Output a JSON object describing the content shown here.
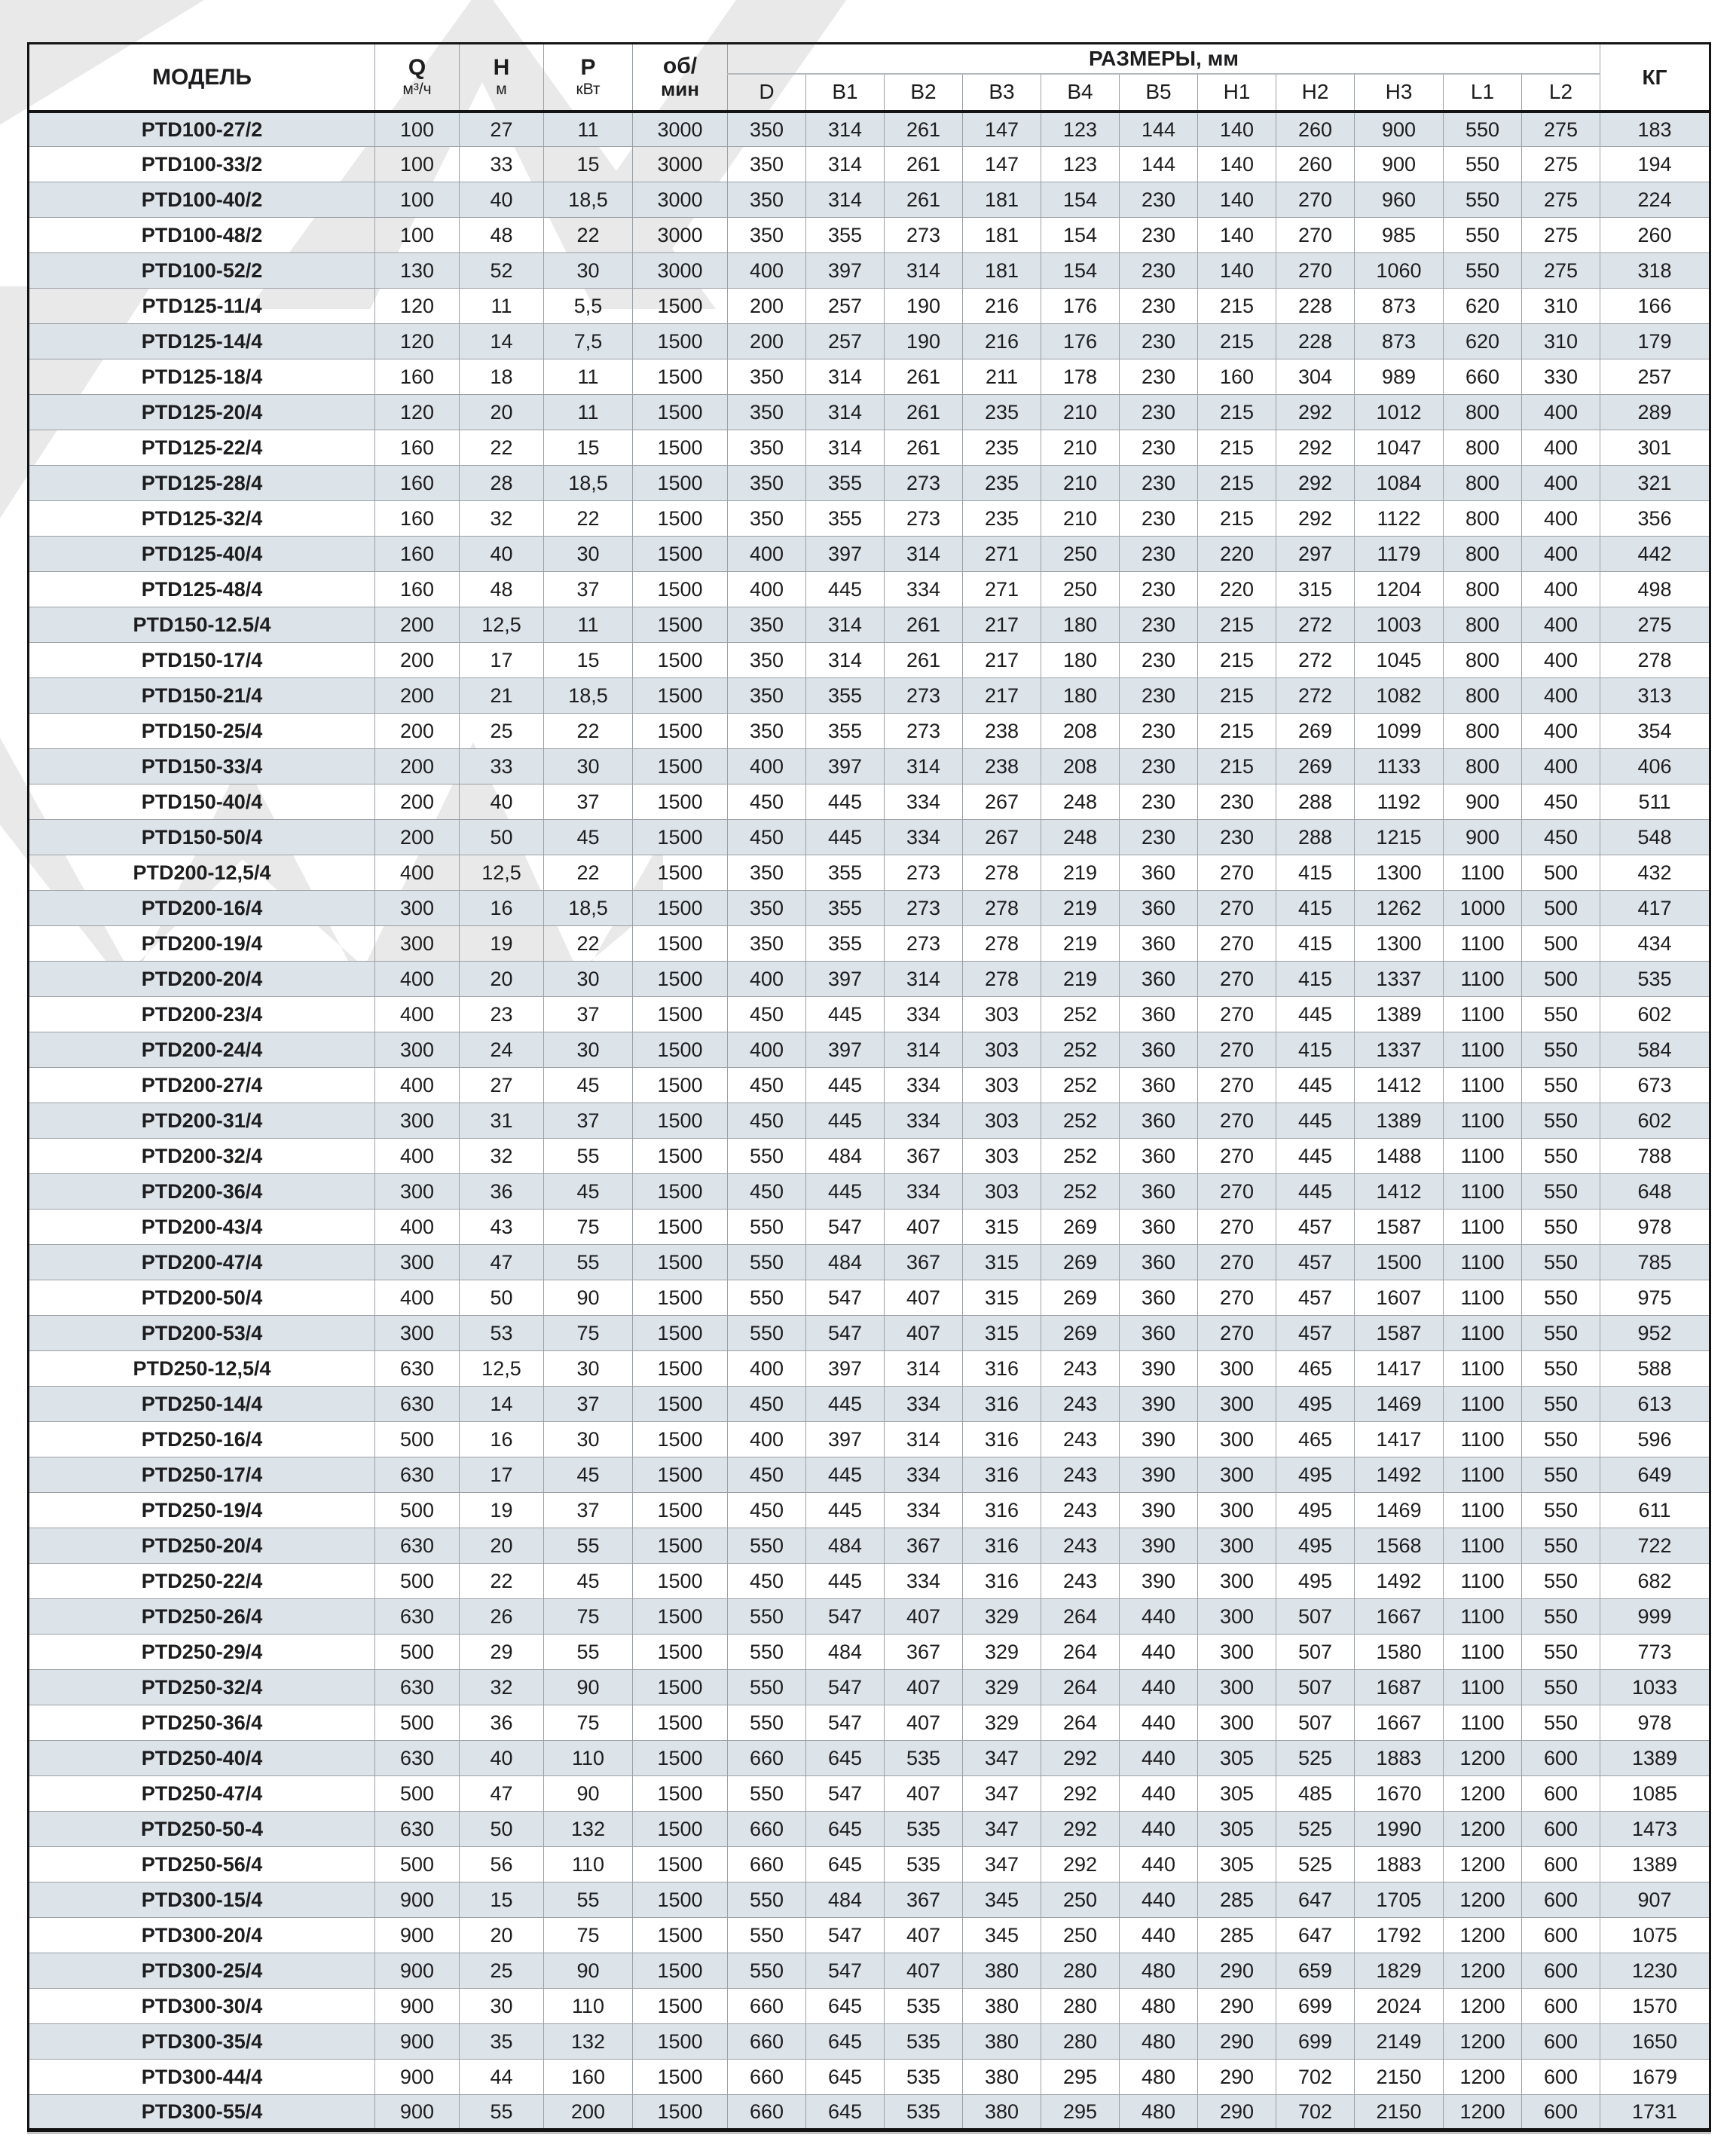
{
  "colors": {
    "row_shade": "#dce3e9",
    "grid_line": "#9aa0a6",
    "frame": "#141414",
    "text": "#1d1d1f",
    "watermark": "#e9e9e9"
  },
  "header": {
    "model": "МОДЕЛЬ",
    "q_label": "Q",
    "q_unit": "м³/ч",
    "h_label": "Н",
    "h_unit": "м",
    "p_label": "Р",
    "p_unit": "кВт",
    "rpm_line1": "об/",
    "rpm_line2": "мин",
    "sizes_label": "РАЗМЕРЫ, мм",
    "size_cols": [
      "D",
      "B1",
      "B2",
      "B3",
      "B4",
      "B5",
      "H1",
      "H2",
      "H3",
      "L1",
      "L2"
    ],
    "kg": "КГ"
  },
  "rows": [
    [
      "PTD100-27/2",
      "100",
      "27",
      "11",
      "3000",
      "350",
      "314",
      "261",
      "147",
      "123",
      "144",
      "140",
      "260",
      "900",
      "550",
      "275",
      "183"
    ],
    [
      "PTD100-33/2",
      "100",
      "33",
      "15",
      "3000",
      "350",
      "314",
      "261",
      "147",
      "123",
      "144",
      "140",
      "260",
      "900",
      "550",
      "275",
      "194"
    ],
    [
      "PTD100-40/2",
      "100",
      "40",
      "18,5",
      "3000",
      "350",
      "314",
      "261",
      "181",
      "154",
      "230",
      "140",
      "270",
      "960",
      "550",
      "275",
      "224"
    ],
    [
      "PTD100-48/2",
      "100",
      "48",
      "22",
      "3000",
      "350",
      "355",
      "273",
      "181",
      "154",
      "230",
      "140",
      "270",
      "985",
      "550",
      "275",
      "260"
    ],
    [
      "PTD100-52/2",
      "130",
      "52",
      "30",
      "3000",
      "400",
      "397",
      "314",
      "181",
      "154",
      "230",
      "140",
      "270",
      "1060",
      "550",
      "275",
      "318"
    ],
    [
      "PTD125-11/4",
      "120",
      "11",
      "5,5",
      "1500",
      "200",
      "257",
      "190",
      "216",
      "176",
      "230",
      "215",
      "228",
      "873",
      "620",
      "310",
      "166"
    ],
    [
      "PTD125-14/4",
      "120",
      "14",
      "7,5",
      "1500",
      "200",
      "257",
      "190",
      "216",
      "176",
      "230",
      "215",
      "228",
      "873",
      "620",
      "310",
      "179"
    ],
    [
      "PTD125-18/4",
      "160",
      "18",
      "11",
      "1500",
      "350",
      "314",
      "261",
      "211",
      "178",
      "230",
      "160",
      "304",
      "989",
      "660",
      "330",
      "257"
    ],
    [
      "PTD125-20/4",
      "120",
      "20",
      "11",
      "1500",
      "350",
      "314",
      "261",
      "235",
      "210",
      "230",
      "215",
      "292",
      "1012",
      "800",
      "400",
      "289"
    ],
    [
      "PTD125-22/4",
      "160",
      "22",
      "15",
      "1500",
      "350",
      "314",
      "261",
      "235",
      "210",
      "230",
      "215",
      "292",
      "1047",
      "800",
      "400",
      "301"
    ],
    [
      "PTD125-28/4",
      "160",
      "28",
      "18,5",
      "1500",
      "350",
      "355",
      "273",
      "235",
      "210",
      "230",
      "215",
      "292",
      "1084",
      "800",
      "400",
      "321"
    ],
    [
      "PTD125-32/4",
      "160",
      "32",
      "22",
      "1500",
      "350",
      "355",
      "273",
      "235",
      "210",
      "230",
      "215",
      "292",
      "1122",
      "800",
      "400",
      "356"
    ],
    [
      "PTD125-40/4",
      "160",
      "40",
      "30",
      "1500",
      "400",
      "397",
      "314",
      "271",
      "250",
      "230",
      "220",
      "297",
      "1179",
      "800",
      "400",
      "442"
    ],
    [
      "PTD125-48/4",
      "160",
      "48",
      "37",
      "1500",
      "400",
      "445",
      "334",
      "271",
      "250",
      "230",
      "220",
      "315",
      "1204",
      "800",
      "400",
      "498"
    ],
    [
      "PTD150-12.5/4",
      "200",
      "12,5",
      "11",
      "1500",
      "350",
      "314",
      "261",
      "217",
      "180",
      "230",
      "215",
      "272",
      "1003",
      "800",
      "400",
      "275"
    ],
    [
      "PTD150-17/4",
      "200",
      "17",
      "15",
      "1500",
      "350",
      "314",
      "261",
      "217",
      "180",
      "230",
      "215",
      "272",
      "1045",
      "800",
      "400",
      "278"
    ],
    [
      "PTD150-21/4",
      "200",
      "21",
      "18,5",
      "1500",
      "350",
      "355",
      "273",
      "217",
      "180",
      "230",
      "215",
      "272",
      "1082",
      "800",
      "400",
      "313"
    ],
    [
      "PTD150-25/4",
      "200",
      "25",
      "22",
      "1500",
      "350",
      "355",
      "273",
      "238",
      "208",
      "230",
      "215",
      "269",
      "1099",
      "800",
      "400",
      "354"
    ],
    [
      "PTD150-33/4",
      "200",
      "33",
      "30",
      "1500",
      "400",
      "397",
      "314",
      "238",
      "208",
      "230",
      "215",
      "269",
      "1133",
      "800",
      "400",
      "406"
    ],
    [
      "PTD150-40/4",
      "200",
      "40",
      "37",
      "1500",
      "450",
      "445",
      "334",
      "267",
      "248",
      "230",
      "230",
      "288",
      "1192",
      "900",
      "450",
      "511"
    ],
    [
      "PTD150-50/4",
      "200",
      "50",
      "45",
      "1500",
      "450",
      "445",
      "334",
      "267",
      "248",
      "230",
      "230",
      "288",
      "1215",
      "900",
      "450",
      "548"
    ],
    [
      "PTD200-12,5/4",
      "400",
      "12,5",
      "22",
      "1500",
      "350",
      "355",
      "273",
      "278",
      "219",
      "360",
      "270",
      "415",
      "1300",
      "1100",
      "500",
      "432"
    ],
    [
      "PTD200-16/4",
      "300",
      "16",
      "18,5",
      "1500",
      "350",
      "355",
      "273",
      "278",
      "219",
      "360",
      "270",
      "415",
      "1262",
      "1000",
      "500",
      "417"
    ],
    [
      "PTD200-19/4",
      "300",
      "19",
      "22",
      "1500",
      "350",
      "355",
      "273",
      "278",
      "219",
      "360",
      "270",
      "415",
      "1300",
      "1100",
      "500",
      "434"
    ],
    [
      "PTD200-20/4",
      "400",
      "20",
      "30",
      "1500",
      "400",
      "397",
      "314",
      "278",
      "219",
      "360",
      "270",
      "415",
      "1337",
      "1100",
      "500",
      "535"
    ],
    [
      "PTD200-23/4",
      "400",
      "23",
      "37",
      "1500",
      "450",
      "445",
      "334",
      "303",
      "252",
      "360",
      "270",
      "445",
      "1389",
      "1100",
      "550",
      "602"
    ],
    [
      "PTD200-24/4",
      "300",
      "24",
      "30",
      "1500",
      "400",
      "397",
      "314",
      "303",
      "252",
      "360",
      "270",
      "415",
      "1337",
      "1100",
      "550",
      "584"
    ],
    [
      "PTD200-27/4",
      "400",
      "27",
      "45",
      "1500",
      "450",
      "445",
      "334",
      "303",
      "252",
      "360",
      "270",
      "445",
      "1412",
      "1100",
      "550",
      "673"
    ],
    [
      "PTD200-31/4",
      "300",
      "31",
      "37",
      "1500",
      "450",
      "445",
      "334",
      "303",
      "252",
      "360",
      "270",
      "445",
      "1389",
      "1100",
      "550",
      "602"
    ],
    [
      "PTD200-32/4",
      "400",
      "32",
      "55",
      "1500",
      "550",
      "484",
      "367",
      "303",
      "252",
      "360",
      "270",
      "445",
      "1488",
      "1100",
      "550",
      "788"
    ],
    [
      "PTD200-36/4",
      "300",
      "36",
      "45",
      "1500",
      "450",
      "445",
      "334",
      "303",
      "252",
      "360",
      "270",
      "445",
      "1412",
      "1100",
      "550",
      "648"
    ],
    [
      "PTD200-43/4",
      "400",
      "43",
      "75",
      "1500",
      "550",
      "547",
      "407",
      "315",
      "269",
      "360",
      "270",
      "457",
      "1587",
      "1100",
      "550",
      "978"
    ],
    [
      "PTD200-47/4",
      "300",
      "47",
      "55",
      "1500",
      "550",
      "484",
      "367",
      "315",
      "269",
      "360",
      "270",
      "457",
      "1500",
      "1100",
      "550",
      "785"
    ],
    [
      "PTD200-50/4",
      "400",
      "50",
      "90",
      "1500",
      "550",
      "547",
      "407",
      "315",
      "269",
      "360",
      "270",
      "457",
      "1607",
      "1100",
      "550",
      "975"
    ],
    [
      "PTD200-53/4",
      "300",
      "53",
      "75",
      "1500",
      "550",
      "547",
      "407",
      "315",
      "269",
      "360",
      "270",
      "457",
      "1587",
      "1100",
      "550",
      "952"
    ],
    [
      "PTD250-12,5/4",
      "630",
      "12,5",
      "30",
      "1500",
      "400",
      "397",
      "314",
      "316",
      "243",
      "390",
      "300",
      "465",
      "1417",
      "1100",
      "550",
      "588"
    ],
    [
      "PTD250-14/4",
      "630",
      "14",
      "37",
      "1500",
      "450",
      "445",
      "334",
      "316",
      "243",
      "390",
      "300",
      "495",
      "1469",
      "1100",
      "550",
      "613"
    ],
    [
      "PTD250-16/4",
      "500",
      "16",
      "30",
      "1500",
      "400",
      "397",
      "314",
      "316",
      "243",
      "390",
      "300",
      "465",
      "1417",
      "1100",
      "550",
      "596"
    ],
    [
      "PTD250-17/4",
      "630",
      "17",
      "45",
      "1500",
      "450",
      "445",
      "334",
      "316",
      "243",
      "390",
      "300",
      "495",
      "1492",
      "1100",
      "550",
      "649"
    ],
    [
      "PTD250-19/4",
      "500",
      "19",
      "37",
      "1500",
      "450",
      "445",
      "334",
      "316",
      "243",
      "390",
      "300",
      "495",
      "1469",
      "1100",
      "550",
      "611"
    ],
    [
      "PTD250-20/4",
      "630",
      "20",
      "55",
      "1500",
      "550",
      "484",
      "367",
      "316",
      "243",
      "390",
      "300",
      "495",
      "1568",
      "1100",
      "550",
      "722"
    ],
    [
      "PTD250-22/4",
      "500",
      "22",
      "45",
      "1500",
      "450",
      "445",
      "334",
      "316",
      "243",
      "390",
      "300",
      "495",
      "1492",
      "1100",
      "550",
      "682"
    ],
    [
      "PTD250-26/4",
      "630",
      "26",
      "75",
      "1500",
      "550",
      "547",
      "407",
      "329",
      "264",
      "440",
      "300",
      "507",
      "1667",
      "1100",
      "550",
      "999"
    ],
    [
      "PTD250-29/4",
      "500",
      "29",
      "55",
      "1500",
      "550",
      "484",
      "367",
      "329",
      "264",
      "440",
      "300",
      "507",
      "1580",
      "1100",
      "550",
      "773"
    ],
    [
      "PTD250-32/4",
      "630",
      "32",
      "90",
      "1500",
      "550",
      "547",
      "407",
      "329",
      "264",
      "440",
      "300",
      "507",
      "1687",
      "1100",
      "550",
      "1033"
    ],
    [
      "PTD250-36/4",
      "500",
      "36",
      "75",
      "1500",
      "550",
      "547",
      "407",
      "329",
      "264",
      "440",
      "300",
      "507",
      "1667",
      "1100",
      "550",
      "978"
    ],
    [
      "PTD250-40/4",
      "630",
      "40",
      "110",
      "1500",
      "660",
      "645",
      "535",
      "347",
      "292",
      "440",
      "305",
      "525",
      "1883",
      "1200",
      "600",
      "1389"
    ],
    [
      "PTD250-47/4",
      "500",
      "47",
      "90",
      "1500",
      "550",
      "547",
      "407",
      "347",
      "292",
      "440",
      "305",
      "485",
      "1670",
      "1200",
      "600",
      "1085"
    ],
    [
      "PTD250-50-4",
      "630",
      "50",
      "132",
      "1500",
      "660",
      "645",
      "535",
      "347",
      "292",
      "440",
      "305",
      "525",
      "1990",
      "1200",
      "600",
      "1473"
    ],
    [
      "PTD250-56/4",
      "500",
      "56",
      "110",
      "1500",
      "660",
      "645",
      "535",
      "347",
      "292",
      "440",
      "305",
      "525",
      "1883",
      "1200",
      "600",
      "1389"
    ],
    [
      "PTD300-15/4",
      "900",
      "15",
      "55",
      "1500",
      "550",
      "484",
      "367",
      "345",
      "250",
      "440",
      "285",
      "647",
      "1705",
      "1200",
      "600",
      "907"
    ],
    [
      "PTD300-20/4",
      "900",
      "20",
      "75",
      "1500",
      "550",
      "547",
      "407",
      "345",
      "250",
      "440",
      "285",
      "647",
      "1792",
      "1200",
      "600",
      "1075"
    ],
    [
      "PTD300-25/4",
      "900",
      "25",
      "90",
      "1500",
      "550",
      "547",
      "407",
      "380",
      "280",
      "480",
      "290",
      "659",
      "1829",
      "1200",
      "600",
      "1230"
    ],
    [
      "PTD300-30/4",
      "900",
      "30",
      "110",
      "1500",
      "660",
      "645",
      "535",
      "380",
      "280",
      "480",
      "290",
      "699",
      "2024",
      "1200",
      "600",
      "1570"
    ],
    [
      "PTD300-35/4",
      "900",
      "35",
      "132",
      "1500",
      "660",
      "645",
      "535",
      "380",
      "280",
      "480",
      "290",
      "699",
      "2149",
      "1200",
      "600",
      "1650"
    ],
    [
      "PTD300-44/4",
      "900",
      "44",
      "160",
      "1500",
      "660",
      "645",
      "535",
      "380",
      "295",
      "480",
      "290",
      "702",
      "2150",
      "1200",
      "600",
      "1679"
    ],
    [
      "PTD300-55/4",
      "900",
      "55",
      "200",
      "1500",
      "660",
      "645",
      "535",
      "380",
      "295",
      "480",
      "290",
      "702",
      "2150",
      "1200",
      "600",
      "1731"
    ]
  ]
}
